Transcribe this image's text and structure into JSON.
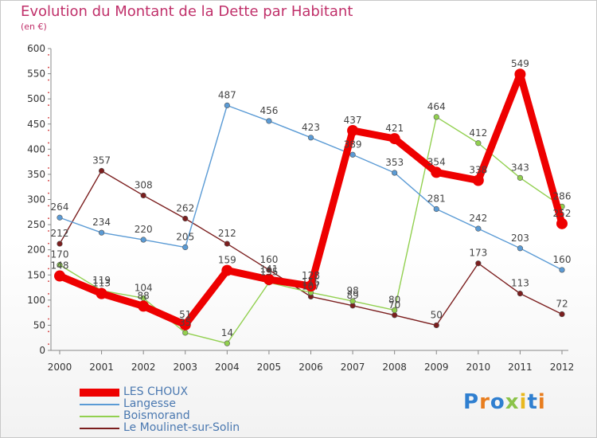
{
  "header": {
    "title": "Evolution du Montant de la Dette par Habitant",
    "subtitle": "(en €)"
  },
  "logo": {
    "text": "Proxiti",
    "letters": [
      "P",
      "r",
      "o",
      "x",
      "i",
      "t",
      "i"
    ],
    "colors": [
      "#2f7fd0",
      "#e87d1e",
      "#2f7fd0",
      "#8bc34a",
      "#e8b81e",
      "#2f7fd0",
      "#e87d1e"
    ]
  },
  "chart_data": {
    "type": "line",
    "title": "Evolution du Montant de la Dette par Habitant",
    "ylabel": "(en €)",
    "xlabel": "",
    "x": [
      "2000",
      "2001",
      "2002",
      "2003",
      "2004",
      "2005",
      "2006",
      "2007",
      "2008",
      "2009",
      "2010",
      "2011",
      "2012"
    ],
    "ylim": [
      0,
      600
    ],
    "yticks": [
      0,
      50,
      100,
      150,
      200,
      250,
      300,
      350,
      400,
      450,
      500,
      550,
      600
    ],
    "grid": false,
    "legend_position": "bottom-left",
    "series": [
      {
        "name": "LES CHOUX",
        "color": "#ee0000",
        "values": [
          148,
          113,
          88,
          51,
          159,
          141,
          128,
          437,
          421,
          354,
          338,
          549,
          252
        ]
      },
      {
        "name": "Langesse",
        "color": "#5b9bd5",
        "values": [
          264,
          234,
          220,
          205,
          487,
          456,
          423,
          389,
          353,
          281,
          242,
          203,
          160
        ]
      },
      {
        "name": "Boismorand",
        "color": "#92d050",
        "values": [
          170,
          119,
          104,
          35,
          14,
          135,
          115,
          98,
          80,
          464,
          412,
          343,
          286
        ]
      },
      {
        "name": "Le Moulinet-sur-Solin",
        "color": "#7b1e1e",
        "values": [
          212,
          357,
          308,
          262,
          212,
          160,
          107,
          89,
          70,
          50,
          173,
          113,
          72
        ]
      }
    ]
  }
}
